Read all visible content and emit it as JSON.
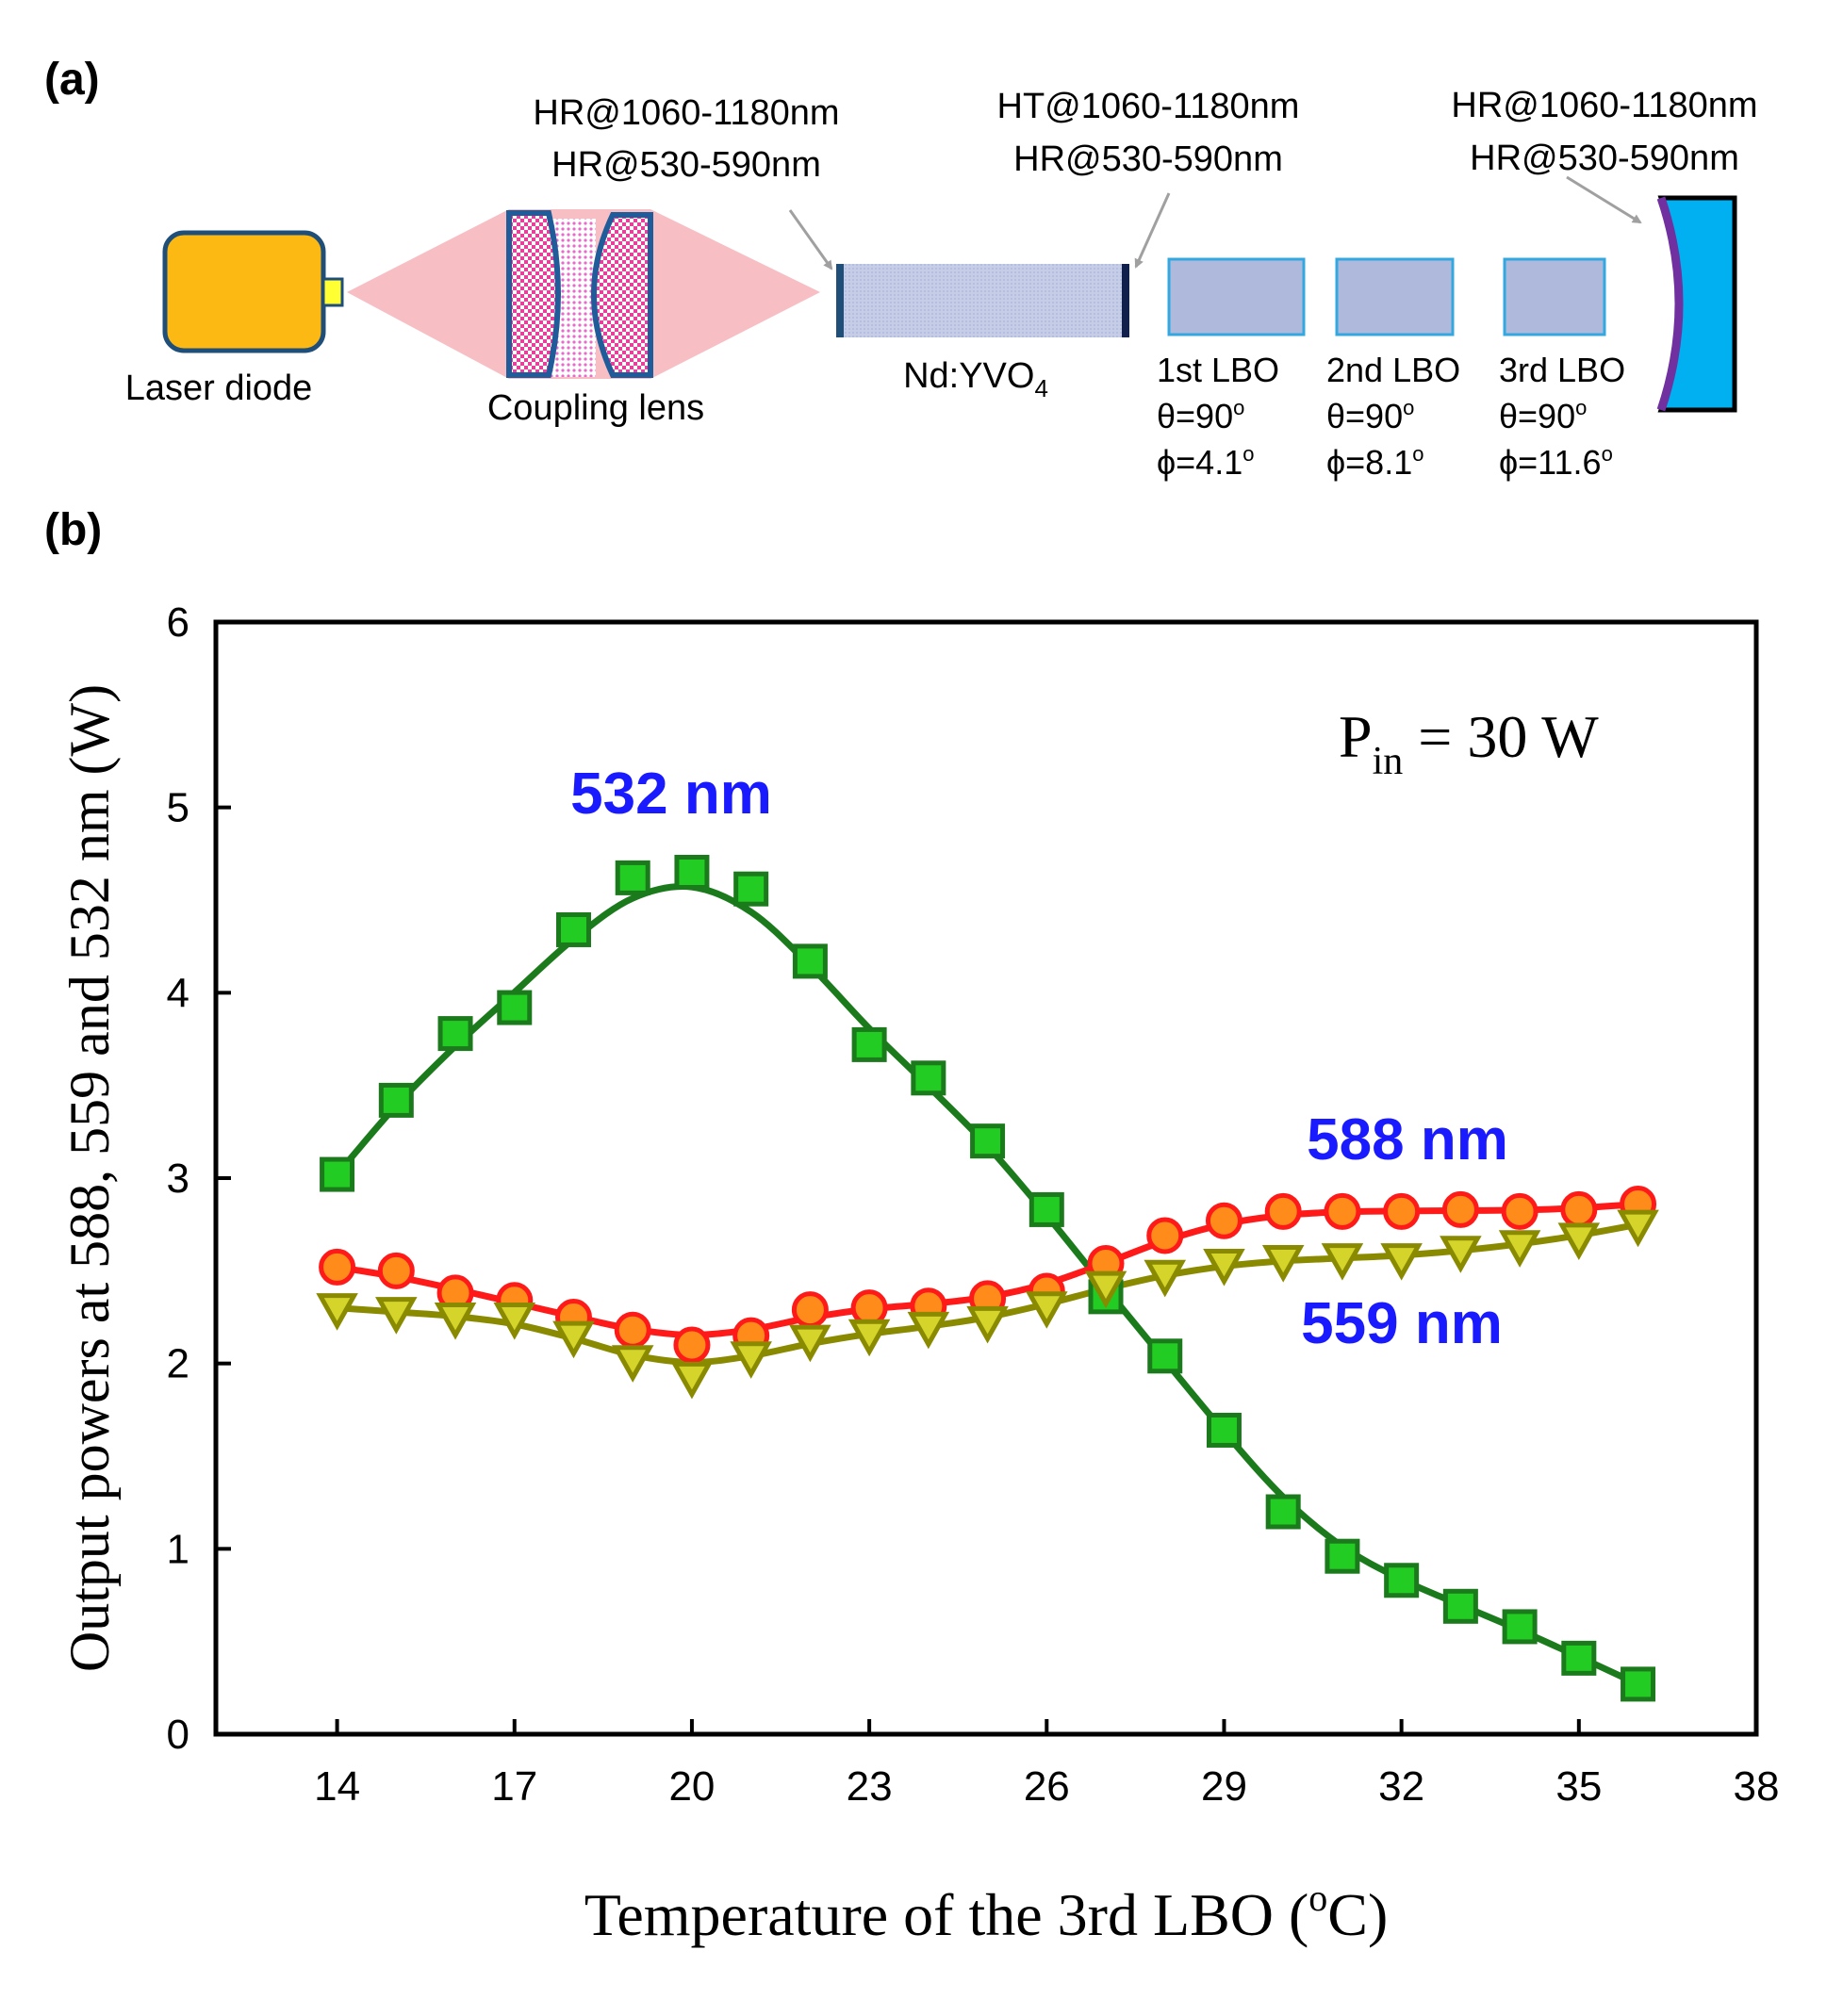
{
  "panel_a": {
    "label": "(a)",
    "laser_diode_label": "Laser diode",
    "coupling_lens_label": "Coupling lens",
    "crystal_label": "Nd:YVO",
    "crystal_subscript": "4",
    "input_mirror_coating": [
      "HR@1060-1180nm",
      "HR@530-590nm"
    ],
    "crystal_coating": [
      "HT@1060-1180nm",
      "HR@530-590nm"
    ],
    "output_mirror_coating": [
      "HR@1060-1180nm",
      "HR@530-590nm"
    ],
    "lbo_crystals": [
      {
        "name": "1st LBO",
        "theta": "θ=90",
        "phi": "ϕ=4.1",
        "deg": "o"
      },
      {
        "name": "2nd LBO",
        "theta": "θ=90",
        "phi": "ϕ=8.1",
        "deg": "o"
      },
      {
        "name": "3rd LBO",
        "theta": "θ=90",
        "phi": "ϕ=11.6",
        "deg": "o"
      }
    ],
    "colors": {
      "diode": "#fdb913",
      "beam": "#f4a0a8",
      "lens_border": "#1f5c99",
      "lens_fill": "#e8409a",
      "crystal": "#c6cde6",
      "lbo": "#aeb9dc",
      "lbo_border": "#33a8e0",
      "mirror": "#00b0f0",
      "mirror_coat": "#7030a0"
    }
  },
  "panel_b": {
    "label": "(b)",
    "chart_data": {
      "type": "line",
      "xlabel": "Temperature of the 3rd LBO (",
      "xlabel_sup": "o",
      "xlabel_end": "C)",
      "ylabel": "Output powers at 588, 559 and 532 nm (W)",
      "xlim": [
        11.95,
        38
      ],
      "ylim": [
        0,
        6
      ],
      "xticks": [
        14,
        17,
        20,
        23,
        26,
        29,
        32,
        35,
        38
      ],
      "yticks": [
        0,
        1,
        2,
        3,
        4,
        5,
        6
      ],
      "annotation": {
        "main": "P",
        "sub": "in",
        "rest": " = 30 W"
      },
      "series": [
        {
          "name": "532 nm",
          "marker": "square",
          "color": "#1b7a1b",
          "marker_fill": "#22cc22",
          "x": [
            14,
            15,
            16,
            17,
            18,
            19,
            20,
            21,
            22,
            23,
            24,
            25,
            26,
            27,
            28,
            29,
            30,
            31,
            32,
            33,
            34,
            35,
            36
          ],
          "y": [
            3.02,
            3.42,
            3.78,
            3.92,
            4.34,
            4.62,
            4.65,
            4.56,
            4.17,
            3.72,
            3.54,
            3.2,
            2.83,
            2.36,
            2.04,
            1.64,
            1.2,
            0.96,
            0.83,
            0.69,
            0.58,
            0.41,
            0.27
          ]
        },
        {
          "name": "588 nm",
          "marker": "circle",
          "color": "#ff1a1a",
          "marker_fill": "#ff8c1a",
          "x": [
            14,
            15,
            16,
            17,
            18,
            19,
            20,
            21,
            22,
            23,
            24,
            25,
            26,
            27,
            28,
            29,
            30,
            31,
            32,
            33,
            34,
            35,
            36
          ],
          "y": [
            2.52,
            2.5,
            2.38,
            2.34,
            2.25,
            2.18,
            2.1,
            2.15,
            2.29,
            2.3,
            2.31,
            2.35,
            2.39,
            2.54,
            2.69,
            2.77,
            2.82,
            2.82,
            2.82,
            2.83,
            2.82,
            2.83,
            2.86
          ]
        },
        {
          "name": "559 nm",
          "marker": "triangle-down",
          "color": "#8a8a00",
          "marker_fill": "#d4d42a",
          "x": [
            14,
            15,
            16,
            17,
            18,
            19,
            20,
            21,
            22,
            23,
            24,
            25,
            26,
            27,
            28,
            29,
            30,
            31,
            32,
            33,
            34,
            35,
            36
          ],
          "y": [
            2.3,
            2.28,
            2.25,
            2.25,
            2.15,
            2.02,
            1.93,
            2.04,
            2.13,
            2.16,
            2.2,
            2.23,
            2.31,
            2.42,
            2.48,
            2.54,
            2.56,
            2.57,
            2.57,
            2.61,
            2.64,
            2.68,
            2.75
          ]
        }
      ]
    }
  }
}
